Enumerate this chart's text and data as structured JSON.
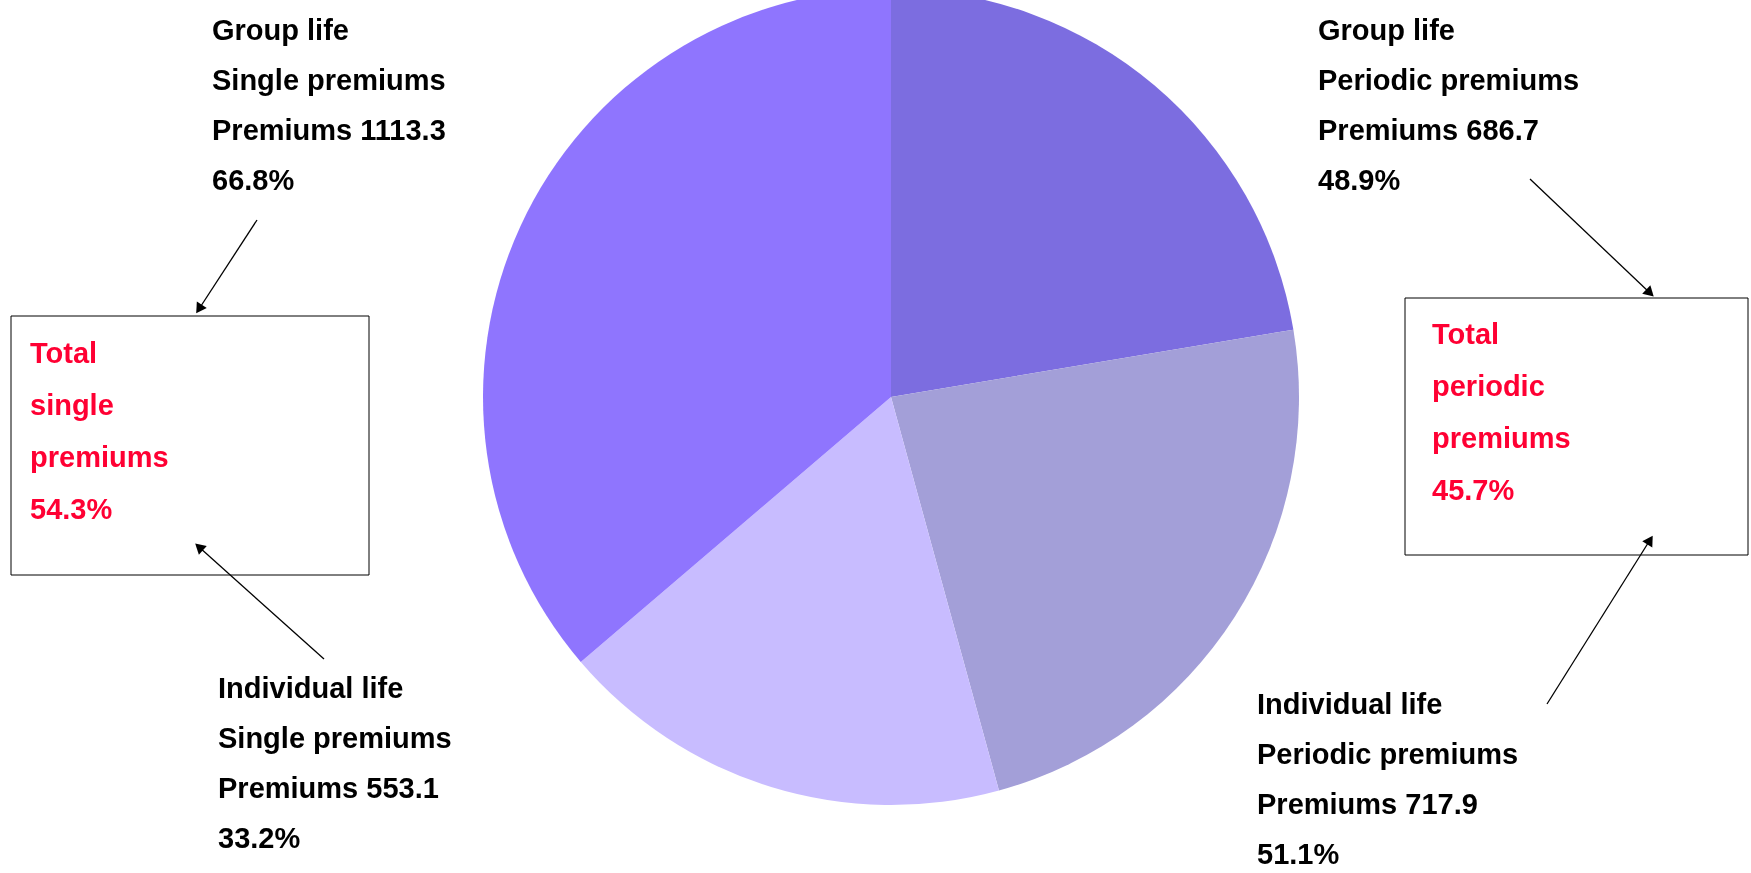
{
  "chart_data": {
    "type": "pie",
    "categories": [
      "Group life\nPeriodic premiums",
      "Individual life\nPeriodic premiums",
      "Individual life\nSingle premiums",
      "Group life\nSingle premiums"
    ],
    "values": [
      686.7,
      717.9,
      553.1,
      1113.3
    ],
    "value_labels": [
      "Premiums 686.7\n48.9%",
      "Premiums 717.9\n51.1%",
      "Premiums 553.1\n33.2%",
      "Premiums 1113.3\n66.8%"
    ],
    "colors": [
      "#7c6de0",
      "#a39fd8",
      "#c8bcff",
      "#8f75fe"
    ],
    "annotations": [
      "Total\nperiodic\npremiums\n45.7%",
      "Total\nsingle\npremiums\n54.3%"
    ]
  }
}
